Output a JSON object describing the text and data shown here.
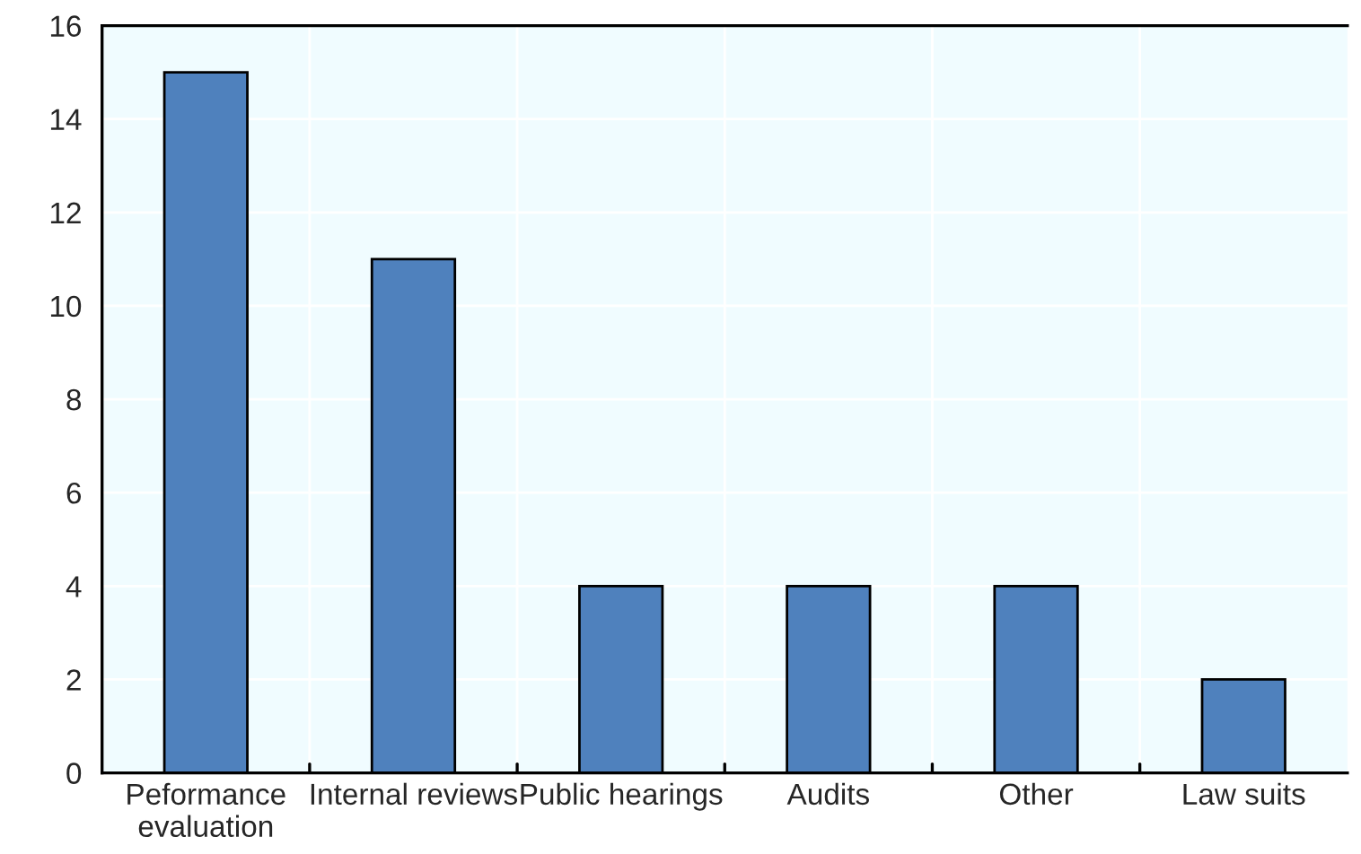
{
  "chart_data": {
    "type": "bar",
    "categories": [
      "Peformance\nevaluation",
      "Internal reviews",
      "Public hearings",
      "Audits",
      "Other",
      "Law suits"
    ],
    "values": [
      15,
      11,
      4,
      4,
      4,
      2
    ],
    "color": "#4f81bd",
    "ylim": [
      0,
      16
    ],
    "yticks": [
      0,
      2,
      4,
      6,
      8,
      10,
      12,
      14,
      16
    ],
    "grid": true
  }
}
